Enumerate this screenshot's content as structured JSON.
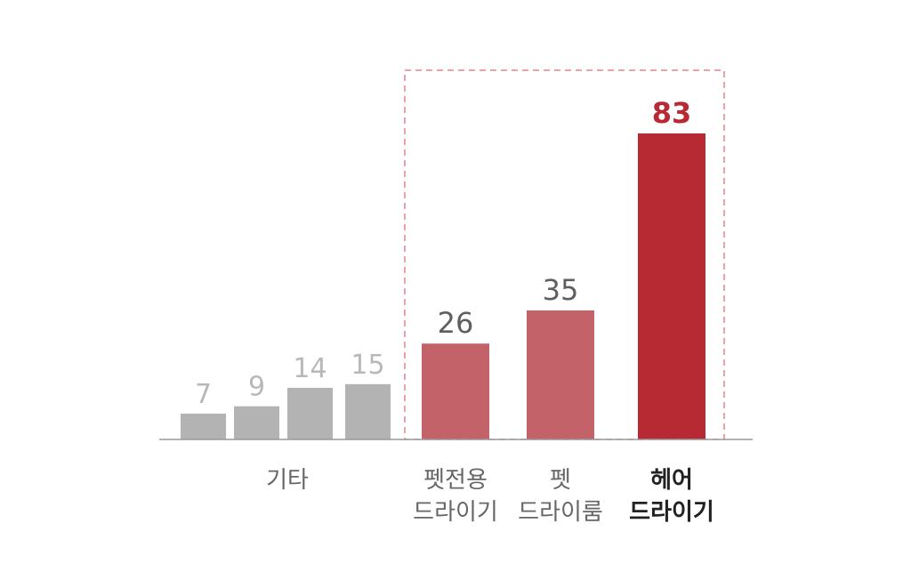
{
  "chart_data": {
    "type": "bar",
    "categories": [
      "",
      "",
      "",
      "",
      "펫전용 드라이기",
      "펫 드라이룸",
      "헤어 드라이기"
    ],
    "values": [
      7,
      9,
      14,
      15,
      26,
      35,
      83
    ],
    "group_label": "기타",
    "highlight_box": "dashed",
    "colors": {
      "other_bar": "#b3b3b3",
      "other_label": "#b8b8b8",
      "mid_bar": "#c4626a",
      "mid_label": "#5f5f5f",
      "top_bar": "#b72933",
      "top_label": "#b72933",
      "axis": "#9a9a9a",
      "box": "#e0868c",
      "category_text": "#666666",
      "category_bold_text": "#222222"
    },
    "ylim": [
      0,
      83
    ]
  }
}
